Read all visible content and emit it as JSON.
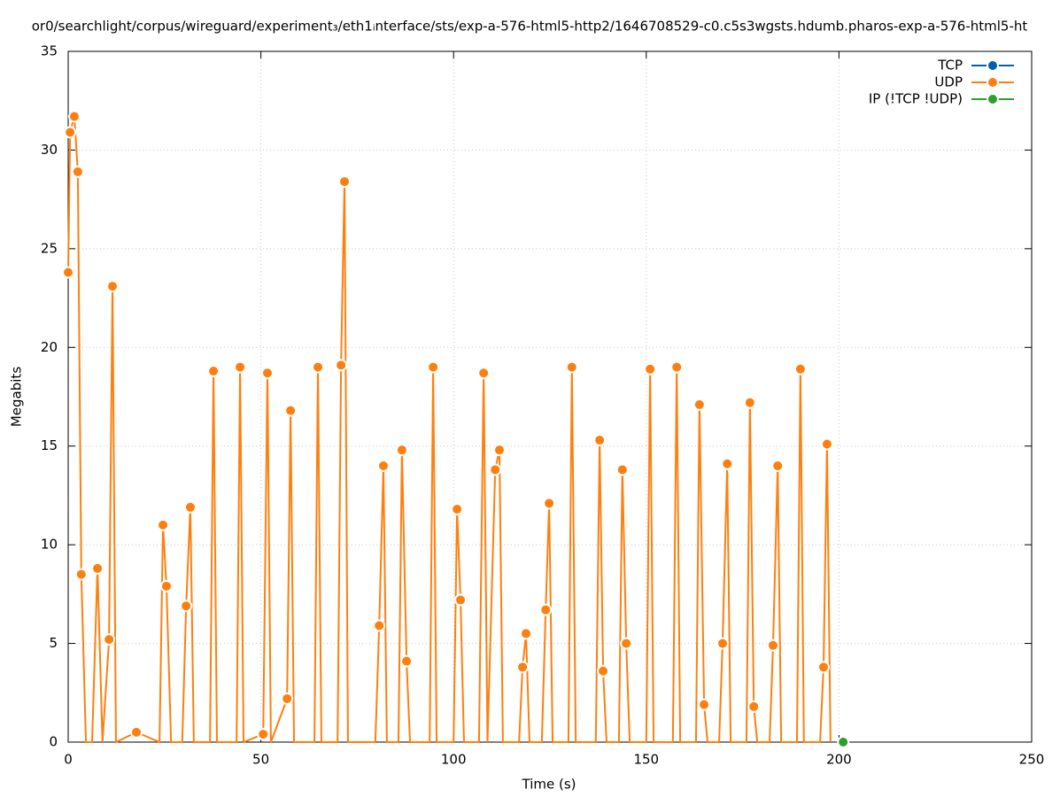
{
  "chart_data": {
    "type": "line",
    "title": "or0/searchlight/corpus/wireguard/experiment₃/eth1ᵢnterface/sts/exp-a-576-html5-http2/1646708529-c0.c5s3wgsts.hdumb.pharos-exp-a-576-html5-ht",
    "x_label": "Time (s)",
    "y_label": "Megabits",
    "xlim": [
      0,
      250
    ],
    "ylim": [
      0,
      35
    ],
    "xticks": [
      0,
      50,
      100,
      150,
      200,
      250
    ],
    "yticks": [
      0,
      5,
      10,
      15,
      20,
      25,
      30,
      35
    ],
    "grid": true,
    "legend": "top-right",
    "series": [
      {
        "name": "TCP",
        "color": "#0060ad",
        "x": [],
        "values": []
      },
      {
        "name": "UDP",
        "color": "#ff7f0e",
        "x": [
          0,
          0.5,
          1.6,
          2.5,
          3.4,
          4.6,
          6.2,
          7.6,
          8.9,
          10.6,
          11.5,
          12.4,
          17.7,
          23.7,
          24.6,
          25.5,
          26.7,
          29.6,
          30.6,
          31.7,
          32.6,
          36.8,
          37.7,
          38.6,
          43.7,
          44.6,
          45.5,
          50.6,
          51.7,
          52.6,
          56.8,
          57.7,
          58.6,
          63.9,
          64.8,
          65.7,
          69.9,
          70.8,
          71.7,
          72.6,
          79.7,
          80.7,
          81.8,
          82.7,
          85.7,
          86.6,
          87.8,
          88.7,
          93.8,
          94.7,
          95.6,
          100.0,
          100.9,
          101.8,
          102.7,
          106.6,
          107.8,
          108.8,
          110.8,
          111.9,
          112.8,
          117.0,
          117.9,
          118.8,
          119.7,
          122.9,
          123.9,
          124.8,
          125.7,
          129.8,
          130.7,
          131.7,
          136.9,
          137.9,
          138.8,
          139.7,
          142.9,
          143.8,
          144.8,
          145.7,
          150.0,
          151.0,
          151.9,
          156.9,
          157.9,
          158.8,
          162.9,
          163.8,
          165.0,
          165.9,
          168.9,
          169.8,
          171.0,
          171.9,
          176.0,
          176.9,
          177.9,
          178.8,
          182.0,
          182.9,
          184.1,
          185.0,
          189.1,
          190.0,
          190.9,
          195.1,
          196.0,
          196.9,
          197.8
        ],
        "values": [
          23.8,
          30.9,
          31.7,
          28.9,
          8.5,
          0,
          0,
          8.8,
          0,
          5.2,
          23.1,
          0,
          0.5,
          0,
          11.0,
          7.9,
          0,
          0,
          6.9,
          11.9,
          0,
          0,
          18.8,
          0,
          0,
          19.0,
          0,
          0.4,
          18.7,
          0,
          2.2,
          16.8,
          0,
          0,
          19.0,
          0,
          0,
          19.1,
          28.4,
          0,
          0,
          5.9,
          14.0,
          0,
          0,
          14.8,
          4.1,
          0,
          0,
          19.0,
          0,
          0,
          11.8,
          7.2,
          0,
          0,
          18.7,
          0,
          13.8,
          14.8,
          0,
          0,
          3.8,
          5.5,
          0,
          0,
          6.7,
          12.1,
          0,
          0,
          19.0,
          0,
          0,
          15.3,
          3.6,
          0,
          0,
          13.8,
          5.0,
          0,
          0,
          18.9,
          0,
          0,
          19.0,
          0,
          0,
          17.1,
          1.9,
          0,
          0,
          5.0,
          14.1,
          0,
          0,
          17.2,
          1.8,
          0,
          0,
          4.9,
          14.0,
          0,
          0,
          18.9,
          0,
          0,
          3.8,
          15.1,
          0
        ]
      },
      {
        "name": "IP (!TCP  !UDP)",
        "color": "#2ca02c",
        "x": [
          201.1
        ],
        "values": [
          0
        ]
      }
    ]
  }
}
